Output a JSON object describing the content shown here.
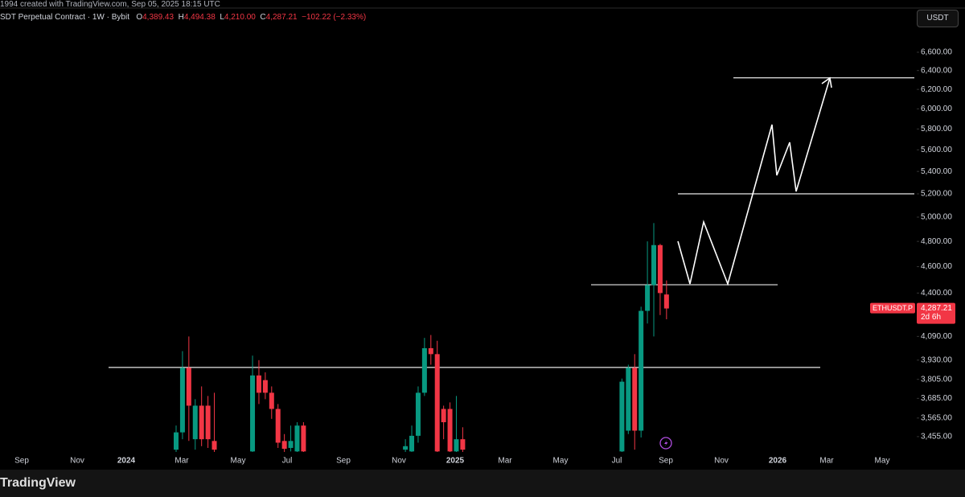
{
  "header": {
    "caption": "1994 created with TradingView.com, Sep 05, 2025 18:15 UTC",
    "symbol": "SDT Perpetual Contract · 1W · Bybit",
    "open_key": "O",
    "open": "4,389.43",
    "high_key": "H",
    "high": "4,494.38",
    "low_key": "L",
    "low": "4,210.00",
    "close_key": "C",
    "close": "4,287.21",
    "change": "−102.22 (−2.33%)",
    "currency": "USDT"
  },
  "chart_data": {
    "type": "candlestick",
    "log_scale": true,
    "up_color": "#089981",
    "down_color": "#f23645",
    "open": [
      3380,
      3480,
      3880,
      3440,
      3640,
      3640,
      3430,
      null,
      null,
      null,
      null,
      null,
      3370,
      3830,
      3800,
      3720,
      3620,
      3430,
      3390,
      3370,
      3520,
      null,
      null,
      null,
      null,
      null,
      null,
      null,
      null,
      null,
      null,
      null,
      null,
      null,
      null,
      null,
      3380,
      3370,
      3460,
      3720,
      4010,
      3970,
      3620,
      3620,
      3370,
      3440,
      null,
      null,
      null,
      null,
      null,
      null,
      null,
      null,
      null,
      null,
      null,
      null,
      null,
      null,
      null,
      null,
      null,
      null,
      null,
      null,
      null,
      null,
      null,
      null,
      3370,
      3490,
      3880,
      3490,
      4270,
      4460,
      4770,
      4389.43
    ],
    "high": [
      3520,
      3990,
      4090,
      3680,
      3760,
      3700,
      3720,
      null,
      null,
      null,
      null,
      null,
      3960,
      3930,
      3850,
      3760,
      3650,
      3470,
      3520,
      3540,
      3540,
      null,
      null,
      null,
      null,
      null,
      null,
      null,
      null,
      null,
      null,
      null,
      null,
      null,
      null,
      null,
      3440,
      3520,
      3760,
      4080,
      4100,
      4060,
      3640,
      3660,
      3700,
      3510,
      null,
      null,
      null,
      null,
      null,
      null,
      null,
      null,
      null,
      null,
      null,
      null,
      null,
      null,
      null,
      null,
      null,
      null,
      null,
      null,
      null,
      null,
      null,
      null,
      3810,
      3900,
      3970,
      4300,
      4800,
      4950,
      4780,
      4494.38
    ],
    "low": [
      3340,
      3440,
      3430,
      3380,
      3400,
      3390,
      3360,
      null,
      null,
      null,
      null,
      null,
      3340,
      3650,
      3680,
      3560,
      3390,
      3360,
      3370,
      3360,
      3350,
      null,
      null,
      null,
      null,
      null,
      null,
      null,
      null,
      null,
      null,
      null,
      null,
      null,
      null,
      null,
      3360,
      3340,
      3420,
      3700,
      3900,
      3340,
      3440,
      3350,
      3350,
      3360,
      null,
      null,
      null,
      null,
      null,
      null,
      null,
      null,
      null,
      null,
      null,
      null,
      null,
      null,
      null,
      null,
      null,
      null,
      null,
      null,
      null,
      null,
      null,
      null,
      3350,
      3470,
      3380,
      3450,
      4180,
      4090,
      4240,
      4210
    ],
    "close": [
      3480,
      3880,
      3640,
      3640,
      3440,
      3440,
      3380,
      null,
      null,
      null,
      null,
      null,
      3830,
      3720,
      3720,
      3620,
      3420,
      3385,
      3430,
      3520,
      3370,
      null,
      null,
      null,
      null,
      null,
      null,
      null,
      null,
      null,
      null,
      null,
      null,
      null,
      null,
      null,
      3400,
      3460,
      3720,
      4010,
      3970,
      3370,
      3540,
      3370,
      3440,
      3380,
      null,
      null,
      null,
      null,
      null,
      null,
      null,
      null,
      null,
      null,
      null,
      null,
      null,
      null,
      null,
      null,
      null,
      null,
      null,
      null,
      null,
      null,
      null,
      null,
      3790,
      3880,
      3490,
      4270,
      4460,
      4770,
      4400,
      4287.21
    ],
    "ylim": [
      3367,
      7110
    ],
    "yticks": [
      {
        "value": 3455,
        "label": "3,455.00"
      },
      {
        "value": 3565,
        "label": "3,565.00"
      },
      {
        "value": 3685,
        "label": "3,685.00"
      },
      {
        "value": 3805,
        "label": "3,805.00"
      },
      {
        "value": 3930,
        "label": "3,930.00"
      },
      {
        "value": 4090,
        "label": "4,090.00"
      },
      {
        "value": 4400,
        "label": "4,400.00"
      },
      {
        "value": 4600,
        "label": "4,600.00"
      },
      {
        "value": 4800,
        "label": "4,800.00"
      },
      {
        "value": 5000,
        "label": "5,000.00"
      },
      {
        "value": 5200,
        "label": "5,200.00"
      },
      {
        "value": 5400,
        "label": "5,400.00"
      },
      {
        "value": 5600,
        "label": "5,600.00"
      },
      {
        "value": 5800,
        "label": "5,800.00"
      },
      {
        "value": 6000,
        "label": "6,000.00"
      },
      {
        "value": 6200,
        "label": "6,200.00"
      },
      {
        "value": 6400,
        "label": "6,400.00"
      },
      {
        "value": 6600,
        "label": "6,600.00"
      }
    ],
    "x_labels": [
      "Sep",
      "Nov",
      "2024",
      "Mar",
      "May",
      "Jul",
      "Sep",
      "Nov",
      "2025",
      "Mar",
      "May",
      "Jul",
      "Sep",
      "Nov",
      "2026",
      "Mar",
      "May"
    ],
    "levels": [
      3882,
      4462,
      5200,
      6322
    ],
    "price_tag": {
      "symbol": "ETHUSDT.P",
      "price": "4,287.21",
      "countdown": "2d 6h"
    }
  },
  "footer": {
    "brand": "TradingView"
  }
}
